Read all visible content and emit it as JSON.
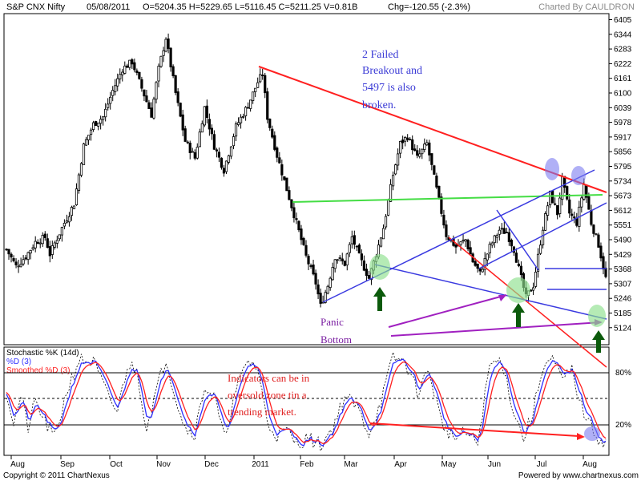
{
  "header": {
    "symbol": "S&P CNX Nifty",
    "date": "05/08/2011",
    "ohlc": "O=5204.35  H=5229.65  L=5116.45  C=5211.25  V=0.81B",
    "change": "Chg=-120.55 (-2.3%)",
    "charted_by": "Charted By CAULDRON"
  },
  "footer": {
    "copyright": "Copyright © 2011 ChartNexus",
    "powered": "Powered by www.chartnexus.com"
  },
  "colors": {
    "trend_red": "#ff2020",
    "support_blue": "#3a3ae0",
    "neckline_green": "#44dd44",
    "arrow_purple": "#a020c0",
    "k_line": "#3030ff",
    "d_line": "#ff2020"
  },
  "annotations": {
    "failed_breakout": [
      "2 Failed",
      "Breakout and",
      "5497 is also",
      "broken."
    ],
    "panic_bottom": [
      "Panic",
      "Bottom"
    ],
    "indicators": [
      "Indicators can be in",
      "oversold zone tin a",
      "trending market."
    ]
  },
  "chart_data": [
    {
      "type": "candlestick",
      "title": "S&P CNX Nifty",
      "y_ticks": [
        6405,
        6344,
        6283,
        6222,
        6161,
        6100,
        6039,
        5978,
        5917,
        5856,
        5795,
        5734,
        5673,
        5612,
        5551,
        5490,
        5429,
        5368,
        5307,
        5246,
        5185,
        5124
      ],
      "ylim": [
        5060,
        6420
      ],
      "x_ticks": [
        "Aug",
        "Sep",
        "Oct",
        "Nov",
        "Dec",
        "2011",
        "Feb",
        "Mar",
        "Apr",
        "May",
        "Jun",
        "Jul",
        "Aug"
      ],
      "close_path": [
        {
          "t": 0,
          "v": 5450
        },
        {
          "t": 4,
          "v": 5380
        },
        {
          "t": 8,
          "v": 5420
        },
        {
          "t": 12,
          "v": 5480
        },
        {
          "t": 16,
          "v": 5500
        },
        {
          "t": 18,
          "v": 5430
        },
        {
          "t": 20,
          "v": 5475
        },
        {
          "t": 24,
          "v": 5560
        },
        {
          "t": 28,
          "v": 5640
        },
        {
          "t": 32,
          "v": 5880
        },
        {
          "t": 36,
          "v": 5970
        },
        {
          "t": 40,
          "v": 6000
        },
        {
          "t": 44,
          "v": 6110
        },
        {
          "t": 48,
          "v": 6200
        },
        {
          "t": 52,
          "v": 6230
        },
        {
          "t": 56,
          "v": 6120
        },
        {
          "t": 60,
          "v": 6010
        },
        {
          "t": 63,
          "v": 6200
        },
        {
          "t": 66,
          "v": 6330
        },
        {
          "t": 70,
          "v": 6100
        },
        {
          "t": 74,
          "v": 5900
        },
        {
          "t": 78,
          "v": 5830
        },
        {
          "t": 82,
          "v": 6040
        },
        {
          "t": 86,
          "v": 5880
        },
        {
          "t": 90,
          "v": 5780
        },
        {
          "t": 95,
          "v": 5960
        },
        {
          "t": 100,
          "v": 6050
        },
        {
          "t": 104,
          "v": 6145
        },
        {
          "t": 106,
          "v": 6180
        },
        {
          "t": 108,
          "v": 6000
        },
        {
          "t": 112,
          "v": 5840
        },
        {
          "t": 116,
          "v": 5700
        },
        {
          "t": 120,
          "v": 5560
        },
        {
          "t": 124,
          "v": 5420
        },
        {
          "t": 128,
          "v": 5310
        },
        {
          "t": 130,
          "v": 5215
        },
        {
          "t": 133,
          "v": 5300
        },
        {
          "t": 136,
          "v": 5420
        },
        {
          "t": 140,
          "v": 5390
        },
        {
          "t": 143,
          "v": 5500
        },
        {
          "t": 146,
          "v": 5420
        },
        {
          "t": 150,
          "v": 5330
        },
        {
          "t": 153,
          "v": 5430
        },
        {
          "t": 156,
          "v": 5540
        },
        {
          "t": 160,
          "v": 5760
        },
        {
          "t": 163,
          "v": 5890
        },
        {
          "t": 166,
          "v": 5920
        },
        {
          "t": 170,
          "v": 5830
        },
        {
          "t": 174,
          "v": 5890
        },
        {
          "t": 178,
          "v": 5700
        },
        {
          "t": 182,
          "v": 5510
        },
        {
          "t": 186,
          "v": 5460
        },
        {
          "t": 190,
          "v": 5490
        },
        {
          "t": 193,
          "v": 5400
        },
        {
          "t": 196,
          "v": 5350
        },
        {
          "t": 200,
          "v": 5460
        },
        {
          "t": 204,
          "v": 5530
        },
        {
          "t": 207,
          "v": 5520
        },
        {
          "t": 210,
          "v": 5450
        },
        {
          "t": 213,
          "v": 5330
        },
        {
          "t": 215,
          "v": 5250
        },
        {
          "t": 218,
          "v": 5300
        },
        {
          "t": 222,
          "v": 5540
        },
        {
          "t": 225,
          "v": 5680
        },
        {
          "t": 228,
          "v": 5600
        },
        {
          "t": 230,
          "v": 5740
        },
        {
          "t": 233,
          "v": 5600
        },
        {
          "t": 236,
          "v": 5560
        },
        {
          "t": 239,
          "v": 5720
        },
        {
          "t": 242,
          "v": 5560
        },
        {
          "t": 245,
          "v": 5470
        },
        {
          "t": 248,
          "v": 5330
        }
      ],
      "horizontal_levels": [
        5612,
        5330,
        5246
      ]
    },
    {
      "type": "line",
      "title": "Stochastic %K (14d)",
      "series": [
        {
          "name": "%D (3)",
          "color": "#3030ff"
        },
        {
          "name": "Smoothed %D (3)",
          "color": "#ff2020"
        }
      ],
      "y_ticks": [
        "80%",
        "20%"
      ],
      "ylim": [
        0,
        100
      ],
      "k_path": [
        {
          "t": 0,
          "v": 60
        },
        {
          "t": 3,
          "v": 30
        },
        {
          "t": 6,
          "v": 55
        },
        {
          "t": 9,
          "v": 25
        },
        {
          "t": 12,
          "v": 50
        },
        {
          "t": 16,
          "v": 30
        },
        {
          "t": 20,
          "v": 15
        },
        {
          "t": 25,
          "v": 60
        },
        {
          "t": 30,
          "v": 90
        },
        {
          "t": 36,
          "v": 88
        },
        {
          "t": 42,
          "v": 55
        },
        {
          "t": 46,
          "v": 40
        },
        {
          "t": 50,
          "v": 85
        },
        {
          "t": 54,
          "v": 80
        },
        {
          "t": 58,
          "v": 25
        },
        {
          "t": 62,
          "v": 60
        },
        {
          "t": 66,
          "v": 92
        },
        {
          "t": 70,
          "v": 55
        },
        {
          "t": 74,
          "v": 25
        },
        {
          "t": 78,
          "v": 20
        },
        {
          "t": 82,
          "v": 65
        },
        {
          "t": 86,
          "v": 55
        },
        {
          "t": 90,
          "v": 15
        },
        {
          "t": 95,
          "v": 60
        },
        {
          "t": 100,
          "v": 90
        },
        {
          "t": 104,
          "v": 82
        },
        {
          "t": 108,
          "v": 30
        },
        {
          "t": 112,
          "v": 18
        },
        {
          "t": 116,
          "v": 22
        },
        {
          "t": 120,
          "v": 10
        },
        {
          "t": 125,
          "v": 15
        },
        {
          "t": 130,
          "v": 8
        },
        {
          "t": 135,
          "v": 25
        },
        {
          "t": 140,
          "v": 55
        },
        {
          "t": 145,
          "v": 45
        },
        {
          "t": 150,
          "v": 20
        },
        {
          "t": 155,
          "v": 50
        },
        {
          "t": 160,
          "v": 92
        },
        {
          "t": 165,
          "v": 88
        },
        {
          "t": 170,
          "v": 60
        },
        {
          "t": 175,
          "v": 80
        },
        {
          "t": 180,
          "v": 30
        },
        {
          "t": 185,
          "v": 15
        },
        {
          "t": 190,
          "v": 20
        },
        {
          "t": 195,
          "v": 10
        },
        {
          "t": 200,
          "v": 85
        },
        {
          "t": 205,
          "v": 90
        },
        {
          "t": 210,
          "v": 40
        },
        {
          "t": 214,
          "v": 15
        },
        {
          "t": 218,
          "v": 40
        },
        {
          "t": 222,
          "v": 85
        },
        {
          "t": 226,
          "v": 90
        },
        {
          "t": 230,
          "v": 70
        },
        {
          "t": 234,
          "v": 80
        },
        {
          "t": 238,
          "v": 45
        },
        {
          "t": 242,
          "v": 25
        },
        {
          "t": 245,
          "v": 15
        },
        {
          "t": 248,
          "v": 10
        }
      ]
    }
  ]
}
